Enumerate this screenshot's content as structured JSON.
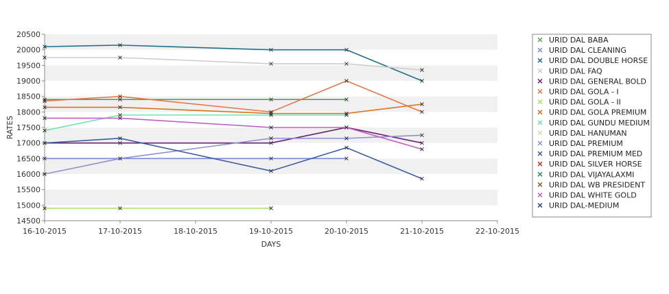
{
  "chart_data": {
    "type": "line",
    "title": "",
    "xlabel": "DAYS",
    "ylabel": "RATES",
    "x_ticks": [
      "16-10-2015",
      "17-10-2015",
      "18-10-2015",
      "19-10-2015",
      "20-10-2015",
      "21-10-2015",
      "22-10-2015"
    ],
    "y_ticks": [
      14500,
      15000,
      15500,
      16000,
      16500,
      17000,
      17500,
      18000,
      18500,
      19000,
      19500,
      20000,
      20500
    ],
    "ylim": [
      14500,
      20500
    ],
    "grid": "horizontal alternating bands",
    "legend_position": "right",
    "series": [
      {
        "name": "URID DAL BABA",
        "color": "#4fa84f",
        "points": [
          [
            "16-10-2015",
            18400
          ],
          [
            "17-10-2015",
            18400
          ],
          [
            "19-10-2015",
            18400
          ],
          [
            "20-10-2015",
            18400
          ]
        ]
      },
      {
        "name": "URID DAL CLEANING",
        "color": "#7b86d6",
        "points": [
          [
            "16-10-2015",
            16500
          ],
          [
            "17-10-2015",
            16500
          ],
          [
            "19-10-2015",
            16500
          ],
          [
            "20-10-2015",
            16500
          ]
        ]
      },
      {
        "name": "URID DAL DOUBLE HORSE",
        "color": "#1f6f8b",
        "points": [
          [
            "16-10-2015",
            20100
          ],
          [
            "17-10-2015",
            20150
          ],
          [
            "19-10-2015",
            20000
          ],
          [
            "20-10-2015",
            20000
          ],
          [
            "21-10-2015",
            19000
          ]
        ]
      },
      {
        "name": "URID DAL FAQ",
        "color": "#cccccc",
        "points": [
          [
            "16-10-2015",
            19750
          ],
          [
            "17-10-2015",
            19750
          ],
          [
            "19-10-2015",
            19550
          ],
          [
            "20-10-2015",
            19550
          ],
          [
            "21-10-2015",
            19350
          ]
        ]
      },
      {
        "name": "URID DAL GENERAL BOLD",
        "color": "#6a1e74",
        "points": [
          [
            "16-10-2015",
            17000
          ],
          [
            "17-10-2015",
            17000
          ],
          [
            "19-10-2015",
            17000
          ],
          [
            "20-10-2015",
            17500
          ],
          [
            "21-10-2015",
            17000
          ]
        ]
      },
      {
        "name": "URID DAL GOLA - I",
        "color": "#e3764a",
        "points": [
          [
            "16-10-2015",
            18350
          ],
          [
            "17-10-2015",
            18500
          ],
          [
            "19-10-2015",
            18000
          ],
          [
            "20-10-2015",
            19000
          ],
          [
            "21-10-2015",
            18000
          ]
        ]
      },
      {
        "name": "URID DAL GOLA - II",
        "color": "#a6e05c",
        "points": [
          [
            "16-10-2015",
            14900
          ],
          [
            "17-10-2015",
            14900
          ],
          [
            "19-10-2015",
            14900
          ]
        ]
      },
      {
        "name": "URID DAL GOLA PREMIUM",
        "color": "#d9731a",
        "points": [
          [
            "16-10-2015",
            18150
          ],
          [
            "17-10-2015",
            18150
          ],
          [
            "19-10-2015",
            17950
          ],
          [
            "20-10-2015",
            17950
          ],
          [
            "21-10-2015",
            18250
          ]
        ]
      },
      {
        "name": "URID DAL GUNDU MEDIUM",
        "color": "#6fe3b0",
        "points": [
          [
            "16-10-2015",
            17400
          ],
          [
            "17-10-2015",
            17900
          ],
          [
            "19-10-2015",
            17900
          ],
          [
            "20-10-2015",
            17900
          ]
        ]
      },
      {
        "name": "URID DAL HANUMAN",
        "color": "#cde0b0",
        "points": []
      },
      {
        "name": "URID DAL PREMIUM",
        "color": "#8d8fcf",
        "points": [
          [
            "16-10-2015",
            16000
          ],
          [
            "17-10-2015",
            16500
          ],
          [
            "19-10-2015",
            17150
          ],
          [
            "20-10-2015",
            17150
          ],
          [
            "21-10-2015",
            17250
          ]
        ]
      },
      {
        "name": "URID DAL PREMIUM MED",
        "color": "#3b5ba5",
        "points": [
          [
            "16-10-2015",
            17000
          ],
          [
            "17-10-2015",
            17150
          ],
          [
            "19-10-2015",
            16100
          ],
          [
            "20-10-2015",
            16850
          ],
          [
            "21-10-2015",
            15850
          ]
        ]
      },
      {
        "name": "URID DAL SILVER HORSE",
        "color": "#c0392b",
        "points": []
      },
      {
        "name": "URID DAL VIJAYALAXMI",
        "color": "#2e8b57",
        "points": []
      },
      {
        "name": "URID DAL WB PRESIDENT",
        "color": "#8b5a1e",
        "points": []
      },
      {
        "name": "URID DAL WHITE GOLD",
        "color": "#c060c0",
        "points": [
          [
            "16-10-2015",
            17800
          ],
          [
            "17-10-2015",
            17800
          ],
          [
            "19-10-2015",
            17500
          ],
          [
            "20-10-2015",
            17500
          ],
          [
            "21-10-2015",
            16800
          ]
        ]
      },
      {
        "name": "URID DAL-MEDIUM",
        "color": "#2b3f8f",
        "points": []
      }
    ]
  }
}
